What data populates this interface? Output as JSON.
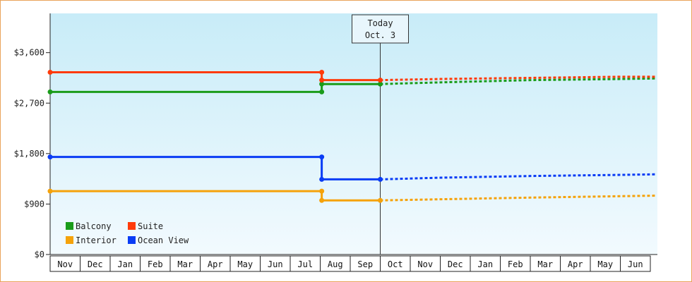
{
  "chart_data": {
    "type": "line",
    "title": "",
    "xlabel": "",
    "ylabel": "",
    "ylim": [
      0,
      4300
    ],
    "yticks": [
      {
        "value": 0,
        "label": "$0"
      },
      {
        "value": 900,
        "label": "$900"
      },
      {
        "value": 1800,
        "label": "$1,800"
      },
      {
        "value": 2700,
        "label": "$2,700"
      },
      {
        "value": 3600,
        "label": "$3,600"
      }
    ],
    "months": [
      "Nov",
      "Dec",
      "Jan",
      "Feb",
      "Mar",
      "Apr",
      "May",
      "Jun",
      "Jul",
      "Aug",
      "Sep",
      "Oct",
      "Nov",
      "Dec",
      "Jan",
      "Feb",
      "Mar",
      "Apr",
      "May",
      "Jun"
    ],
    "x_unit": "month index (0 = start of Nov, 11.0 = Oct. 3)",
    "today": {
      "line1": "Today",
      "line2": "Oct. 3",
      "x": 11.0
    },
    "background_gradient": [
      "#c8ecf8",
      "#f2fafe"
    ],
    "legend_position": "bottom-left",
    "grid": false,
    "series": [
      {
        "name": "Balcony",
        "color": "#1a9c1a",
        "history": [
          [
            0,
            2900
          ],
          [
            9.05,
            2900
          ],
          [
            9.05,
            3040
          ],
          [
            11.0,
            3040
          ]
        ],
        "markers": [
          [
            0,
            2900
          ],
          [
            9.05,
            2900
          ],
          [
            9.05,
            3040
          ],
          [
            11.0,
            3040
          ]
        ],
        "forecast": [
          [
            11.0,
            3040
          ],
          [
            13,
            3070
          ],
          [
            16,
            3110
          ],
          [
            19,
            3130
          ],
          [
            20.2,
            3140
          ]
        ]
      },
      {
        "name": "Suite",
        "color": "#ff3b0a",
        "history": [
          [
            0,
            3250
          ],
          [
            9.05,
            3250
          ],
          [
            9.05,
            3110
          ],
          [
            11.0,
            3110
          ]
        ],
        "markers": [
          [
            0,
            3250
          ],
          [
            9.05,
            3250
          ],
          [
            9.05,
            3110
          ],
          [
            11.0,
            3110
          ]
        ],
        "forecast": [
          [
            11.0,
            3110
          ],
          [
            13,
            3130
          ],
          [
            16,
            3150
          ],
          [
            19,
            3170
          ],
          [
            20.2,
            3170
          ]
        ]
      },
      {
        "name": "Interior",
        "color": "#f5a20a",
        "history": [
          [
            0,
            1130
          ],
          [
            9.05,
            1130
          ],
          [
            9.05,
            965
          ],
          [
            11.0,
            965
          ]
        ],
        "markers": [
          [
            0,
            1130
          ],
          [
            9.05,
            1130
          ],
          [
            9.05,
            965
          ],
          [
            11.0,
            965
          ]
        ],
        "forecast": [
          [
            11.0,
            965
          ],
          [
            13,
            985
          ],
          [
            16,
            1015
          ],
          [
            19,
            1040
          ],
          [
            20.2,
            1050
          ]
        ]
      },
      {
        "name": "Ocean View",
        "color": "#0a3cf5",
        "history": [
          [
            0,
            1740
          ],
          [
            9.05,
            1740
          ],
          [
            9.05,
            1340
          ],
          [
            11.0,
            1340
          ]
        ],
        "markers": [
          [
            0,
            1740
          ],
          [
            9.05,
            1740
          ],
          [
            9.05,
            1340
          ],
          [
            11.0,
            1340
          ]
        ],
        "forecast": [
          [
            11.0,
            1340
          ],
          [
            13,
            1370
          ],
          [
            16,
            1400
          ],
          [
            19,
            1420
          ],
          [
            20.2,
            1430
          ]
        ]
      }
    ]
  }
}
